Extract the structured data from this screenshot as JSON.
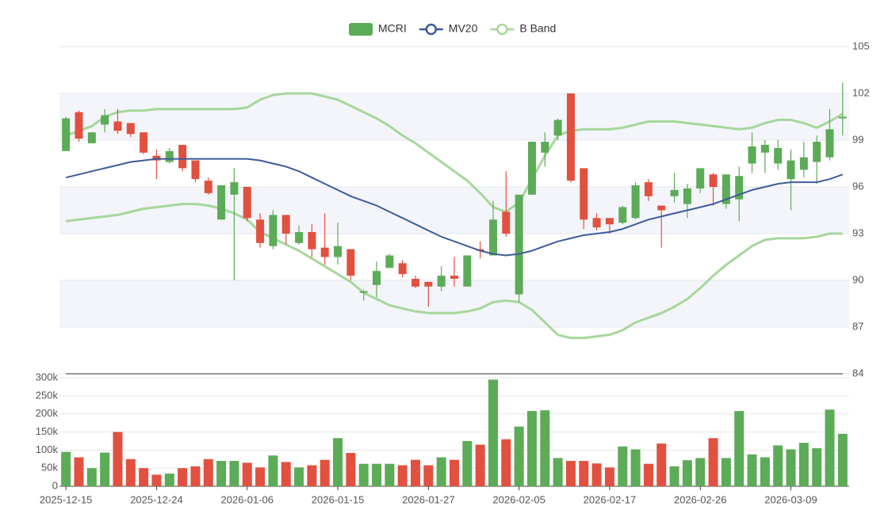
{
  "chart_data": {
    "type": "candlestick",
    "categories": [
      "2025-12-15",
      null,
      null,
      null,
      null,
      null,
      null,
      "2025-12-24",
      null,
      null,
      null,
      null,
      null,
      null,
      "2026-01-06",
      null,
      null,
      null,
      null,
      null,
      null,
      "2026-01-15",
      null,
      null,
      null,
      null,
      null,
      null,
      "2026-01-27",
      null,
      null,
      null,
      null,
      null,
      null,
      "2026-02-05",
      null,
      null,
      null,
      null,
      null,
      null,
      "2026-02-17",
      null,
      null,
      null,
      null,
      null,
      null,
      "2026-02-26",
      null,
      null,
      null,
      null,
      null,
      null,
      "2026-03-09",
      null,
      null,
      null,
      null
    ],
    "series": [
      {
        "name": "MCRI",
        "type": "candlestick",
        "up_color": "#5cab57",
        "down_color": "#e2503f",
        "open": [
          98.3,
          100.8,
          98.8,
          100.0,
          100.2,
          100.1,
          99.5,
          98.0,
          97.6,
          98.7,
          97.7,
          96.4,
          93.9,
          95.5,
          96.0,
          93.9,
          92.2,
          94.2,
          92.4,
          93.1,
          92.1,
          91.5,
          92.0,
          89.2,
          89.7,
          90.8,
          91.1,
          90.1,
          89.9,
          89.6,
          90.3,
          89.6,
          92.0,
          91.6,
          94.4,
          89.1,
          95.5,
          98.2,
          99.3,
          102.0,
          97.2,
          94.0,
          94.0,
          93.7,
          94.0,
          96.3,
          94.8,
          95.4,
          94.9,
          95.9,
          96.8,
          94.9,
          95.2,
          97.5,
          98.2,
          97.5,
          96.5,
          97.1,
          97.6,
          97.9,
          100.4
        ],
        "close": [
          100.4,
          99.1,
          99.5,
          100.6,
          99.6,
          99.4,
          98.2,
          97.7,
          98.3,
          97.2,
          96.5,
          95.6,
          96.1,
          96.3,
          94.0,
          92.4,
          94.2,
          93.0,
          93.1,
          92.0,
          91.5,
          92.2,
          90.3,
          89.3,
          90.6,
          91.6,
          90.4,
          89.6,
          89.6,
          90.3,
          90.1,
          91.6,
          91.9,
          93.9,
          93.0,
          95.5,
          98.9,
          98.9,
          100.3,
          96.4,
          93.9,
          93.4,
          93.6,
          94.7,
          96.1,
          95.4,
          94.5,
          95.8,
          95.9,
          97.2,
          96.0,
          96.8,
          96.7,
          98.6,
          98.7,
          98.5,
          97.7,
          97.9,
          98.9,
          99.7,
          100.5
        ],
        "high": [
          100.5,
          100.9,
          99.5,
          101.0,
          101.0,
          100.1,
          99.5,
          98.4,
          98.5,
          98.7,
          97.7,
          96.6,
          96.1,
          97.2,
          96.0,
          94.3,
          94.5,
          94.2,
          93.5,
          93.6,
          94.3,
          93.7,
          92.0,
          89.4,
          91.2,
          91.7,
          91.3,
          90.3,
          89.9,
          90.9,
          91.5,
          91.6,
          92.5,
          95.1,
          97.0,
          95.5,
          98.9,
          99.5,
          100.4,
          102.0,
          97.2,
          94.3,
          94.0,
          94.8,
          96.3,
          96.5,
          94.8,
          96.9,
          96.2,
          97.2,
          96.9,
          96.8,
          97.3,
          99.5,
          99.0,
          99.0,
          98.4,
          98.9,
          99.3,
          101.0,
          102.7
        ],
        "low": [
          98.3,
          98.9,
          98.8,
          99.5,
          99.4,
          99.2,
          98.1,
          96.5,
          97.5,
          97.0,
          96.3,
          95.5,
          93.9,
          90.0,
          93.8,
          92.1,
          92.0,
          92.3,
          92.3,
          91.5,
          91.0,
          91.0,
          90.0,
          88.7,
          88.9,
          90.8,
          90.2,
          89.5,
          88.3,
          89.3,
          89.6,
          89.6,
          91.4,
          91.6,
          92.8,
          88.6,
          95.5,
          97.3,
          99.0,
          96.3,
          93.3,
          93.2,
          93.0,
          93.6,
          93.9,
          95.1,
          92.1,
          95.0,
          94.0,
          95.6,
          94.8,
          94.6,
          93.8,
          96.9,
          96.9,
          97.1,
          94.5,
          96.6,
          96.2,
          97.7,
          99.3
        ],
        "volume": [
          95000,
          80000,
          50000,
          93000,
          150000,
          75000,
          50000,
          32000,
          35000,
          50000,
          55000,
          75000,
          70000,
          70000,
          65000,
          52000,
          85000,
          67000,
          52000,
          58000,
          73000,
          133000,
          92000,
          62000,
          62000,
          62000,
          58000,
          73000,
          58000,
          80000,
          73000,
          125000,
          115000,
          295000,
          130000,
          165000,
          208000,
          210000,
          78000,
          70000,
          70000,
          63000,
          52000,
          110000,
          102000,
          62000,
          118000,
          55000,
          72000,
          78000,
          133000,
          78000,
          208000,
          88000,
          80000,
          113000,
          102000,
          120000,
          105000,
          212000,
          145000
        ]
      },
      {
        "name": "MV20",
        "type": "line",
        "color": "#3d5c99",
        "values": [
          96.6,
          96.8,
          97.0,
          97.2,
          97.4,
          97.6,
          97.7,
          97.8,
          97.8,
          97.8,
          97.8,
          97.8,
          97.8,
          97.8,
          97.8,
          97.7,
          97.5,
          97.3,
          97.0,
          96.6,
          96.2,
          95.8,
          95.4,
          95.1,
          94.8,
          94.4,
          94.0,
          93.6,
          93.2,
          92.8,
          92.5,
          92.2,
          91.9,
          91.7,
          91.6,
          91.7,
          91.9,
          92.2,
          92.5,
          92.7,
          92.9,
          93.0,
          93.1,
          93.3,
          93.6,
          93.9,
          94.1,
          94.3,
          94.5,
          94.7,
          94.9,
          95.2,
          95.5,
          95.8,
          96.0,
          96.2,
          96.3,
          96.3,
          96.3,
          96.5,
          96.8
        ]
      },
      {
        "name": "B Band",
        "type": "band",
        "color": "#a6d79a",
        "upper": [
          99.3,
          99.6,
          99.9,
          100.5,
          100.8,
          100.9,
          100.9,
          101.0,
          101.0,
          101.0,
          101.0,
          101.0,
          101.0,
          101.0,
          101.1,
          101.6,
          101.9,
          102.0,
          102.0,
          102.0,
          101.8,
          101.6,
          101.2,
          100.8,
          100.4,
          99.9,
          99.3,
          98.8,
          98.2,
          97.6,
          97.0,
          96.4,
          95.6,
          94.7,
          94.4,
          95.0,
          96.5,
          98.0,
          99.3,
          99.6,
          99.7,
          99.7,
          99.7,
          99.8,
          100.0,
          100.2,
          100.2,
          100.2,
          100.1,
          100.0,
          99.9,
          99.8,
          99.7,
          99.8,
          100.1,
          100.3,
          100.3,
          100.1,
          99.8,
          100.2,
          100.7
        ],
        "lower": [
          93.8,
          93.9,
          94.0,
          94.1,
          94.2,
          94.4,
          94.6,
          94.7,
          94.8,
          94.9,
          94.9,
          94.8,
          94.6,
          94.3,
          93.9,
          93.1,
          92.7,
          92.3,
          91.9,
          91.4,
          90.9,
          90.4,
          89.9,
          89.2,
          88.8,
          88.4,
          88.2,
          88.0,
          87.9,
          87.9,
          87.9,
          88.0,
          88.2,
          88.6,
          88.7,
          88.6,
          88.1,
          87.3,
          86.5,
          86.3,
          86.3,
          86.4,
          86.5,
          86.8,
          87.3,
          87.6,
          87.9,
          88.3,
          88.8,
          89.5,
          90.3,
          91.0,
          91.6,
          92.2,
          92.6,
          92.7,
          92.7,
          92.7,
          92.8,
          93.0,
          93.0
        ]
      }
    ],
    "ylim": [
      84,
      105
    ],
    "yticks": [
      84,
      87,
      90,
      93,
      96,
      99,
      102,
      105
    ],
    "volume_lim": [
      0,
      300000
    ],
    "volume_ticks": [
      0,
      {
        "value": 50000,
        "label": "50k"
      },
      {
        "value": 100000,
        "label": "100k"
      },
      {
        "value": 150000,
        "label": "150k"
      },
      {
        "value": 200000,
        "label": "200k"
      },
      {
        "value": 250000,
        "label": "250k"
      },
      {
        "value": 300000,
        "label": "300k"
      }
    ],
    "grid": true
  }
}
